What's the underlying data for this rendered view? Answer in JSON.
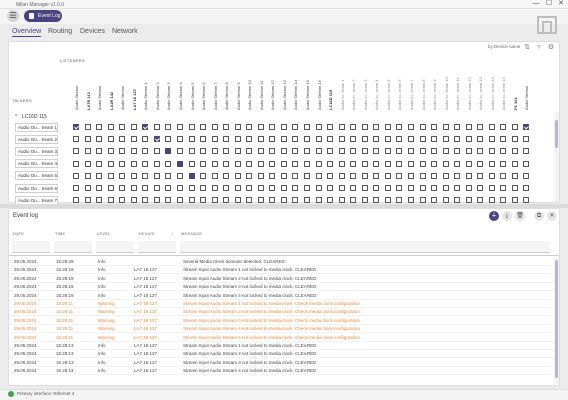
{
  "app": {
    "title": "Milan Manager v1.0.0",
    "accent": "#4b4380"
  },
  "window_controls": {
    "minimize": "—",
    "maximize": "☐",
    "close": "✕"
  },
  "toolbar": {
    "menu_icon": "☰",
    "event_log_label": "Event Log",
    "logo": "Milan"
  },
  "tabs": [
    {
      "label": "Overview",
      "active": true
    },
    {
      "label": "Routing",
      "active": false
    },
    {
      "label": "Devices",
      "active": false
    },
    {
      "label": "Network",
      "active": false
    }
  ],
  "matrix": {
    "sort_label": "by Device name",
    "sort_icon": "⇅",
    "filter_icon": "▿",
    "settings_icon": "⚙",
    "listeners_label": "LISTENERS",
    "talkers_label": "TALKERS",
    "talker_device": "LC16D 115",
    "talker_chevron": "^",
    "columns": [
      "Audio Stream",
      "LA7R 112",
      "Audio Stream",
      "LA2R 142",
      "Audio Stream",
      "LA7 16 127",
      "Audio Stream 1",
      "Audio Stream 2",
      "Audio Stream 3",
      "Audio Stream 4",
      "Audio Stream 5",
      "Audio Stream 6",
      "Audio Stream 7",
      "Audio Stream 8",
      "Audio Stream 9",
      "Audio Stream 10",
      "Audio Stream 11",
      "Audio Stream 12",
      "Audio Stream 13",
      "Audio Stream 14",
      "Audio Stream 15",
      "Audio Stream 16",
      "LC16D 115",
      "Audio In...ream 1",
      "Audio In...ream 2",
      "Audio In...ream 3",
      "Audio In...ream 4",
      "Audio In...ream 5",
      "Audio In...ream 6",
      "Audio In...ream 7",
      "Audio In...ream 8",
      "Audio In...ream 9",
      "Audio In...ream 10",
      "Audio In...ream 11",
      "Audio In...ream 12",
      "Audio In...ream 13",
      "Audio In...ream 14",
      "Audio In...ream 15",
      "P1 101",
      "Audio Stream"
    ],
    "rows": [
      {
        "label": "Audio Ou... tream 1",
        "checked": [
          0,
          6,
          39
        ],
        "filled": []
      },
      {
        "label": "Audio Ou... tream 2",
        "checked": [
          7
        ],
        "filled": []
      },
      {
        "label": "Audio Ou... tream 3",
        "checked": [],
        "filled": [
          8
        ]
      },
      {
        "label": "Audio Ou... tream 4",
        "checked": [],
        "filled": [
          9
        ]
      },
      {
        "label": "Audio Ou... tream 5",
        "checked": [],
        "filled": [
          10
        ]
      },
      {
        "label": "Audio Ou... tream 6",
        "checked": [],
        "filled": []
      },
      {
        "label": "Audio Ou... tream 7",
        "checked": [],
        "filled": []
      }
    ]
  },
  "event_log": {
    "title": "Event log",
    "actions": {
      "filter_icon": "⏚",
      "download_icon": "⤓",
      "delete_icon": "🗑",
      "popout_icon": "⧉",
      "close_icon": "✕"
    },
    "columns": [
      "DATE",
      "TIME",
      "LEVEL",
      "DEVICE",
      "MESSAGE"
    ],
    "rows": [
      {
        "date": "29.05.2024",
        "time": "15:28:29",
        "level": "Info",
        "device": "",
        "message": "Several Media Clock domains detected. CLEARED",
        "warn": false
      },
      {
        "date": "29.05.2024",
        "time": "15:28:19",
        "level": "Info",
        "device": "LA7 16 127",
        "message": "Stream Input Audio Stream 1 not locked to media clock. CLEARED",
        "warn": false
      },
      {
        "date": "29.05.2024",
        "time": "15:28:19",
        "level": "Info",
        "device": "LA7 16 127",
        "message": "Stream Input Audio Stream 2 not locked to media clock. CLEARED",
        "warn": false
      },
      {
        "date": "29.05.2024",
        "time": "15:28:19",
        "level": "Info",
        "device": "LA7 16 127",
        "message": "Stream Input Audio Stream 3 not locked to media clock. CLEARED",
        "warn": false
      },
      {
        "date": "29.05.2024",
        "time": "15:28:19",
        "level": "Info",
        "device": "LA7 16 127",
        "message": "Stream Input Audio Stream 4 not locked to media clock. CLEARED",
        "warn": false
      },
      {
        "date": "29.05.2024",
        "time": "15:28:11",
        "level": "Warning",
        "device": "LA7 16 127",
        "message": "Stream Input Audio Stream 1 not locked to media clock. Check media clock configuration.",
        "warn": true
      },
      {
        "date": "29.05.2024",
        "time": "15:28:11",
        "level": "Warning",
        "device": "LA7 16 127",
        "message": "Stream Input Audio Stream 2 not locked to media clock. Check media clock configuration.",
        "warn": true
      },
      {
        "date": "29.05.2024",
        "time": "15:28:11",
        "level": "Warning",
        "device": "LA7 16 127",
        "message": "Stream Input Audio Stream 3 not locked to media clock. Check media clock configuration.",
        "warn": true
      },
      {
        "date": "29.05.2024",
        "time": "15:28:11",
        "level": "Warning",
        "device": "LA7 16 127",
        "message": "Stream Input Audio Stream 4 not locked to media clock. Check media clock configuration.",
        "warn": true
      },
      {
        "date": "29.05.2024",
        "time": "15:28:11",
        "level": "Warning",
        "device": "LA7 16 127",
        "message": "Stream Input Audio Stream 5 not locked to media clock. Check media clock configuration.",
        "warn": true
      },
      {
        "date": "29.05.2024",
        "time": "15:28:13",
        "level": "Info",
        "device": "LA7 16 127",
        "message": "Stream Input Audio Stream 1 not locked to media clock. CLEARED",
        "warn": false
      },
      {
        "date": "29.05.2024",
        "time": "15:28:13",
        "level": "Info",
        "device": "LA7 16 127",
        "message": "Stream Input Audio Stream 2 not locked to media clock. CLEARED",
        "warn": false
      },
      {
        "date": "29.05.2024",
        "time": "15:28:13",
        "level": "Info",
        "device": "LA7 16 127",
        "message": "Stream Input Audio Stream 3 not locked to media clock. CLEARED",
        "warn": false
      },
      {
        "date": "29.05.2024",
        "time": "15:28:14",
        "level": "Info",
        "device": "LA7 16 127",
        "message": "Stream Input Audio Stream 4 not locked to media clock. CLEARED",
        "warn": false
      }
    ]
  },
  "status": {
    "text": "Primary interface: Ethernet 4",
    "color": "#3da34a"
  }
}
